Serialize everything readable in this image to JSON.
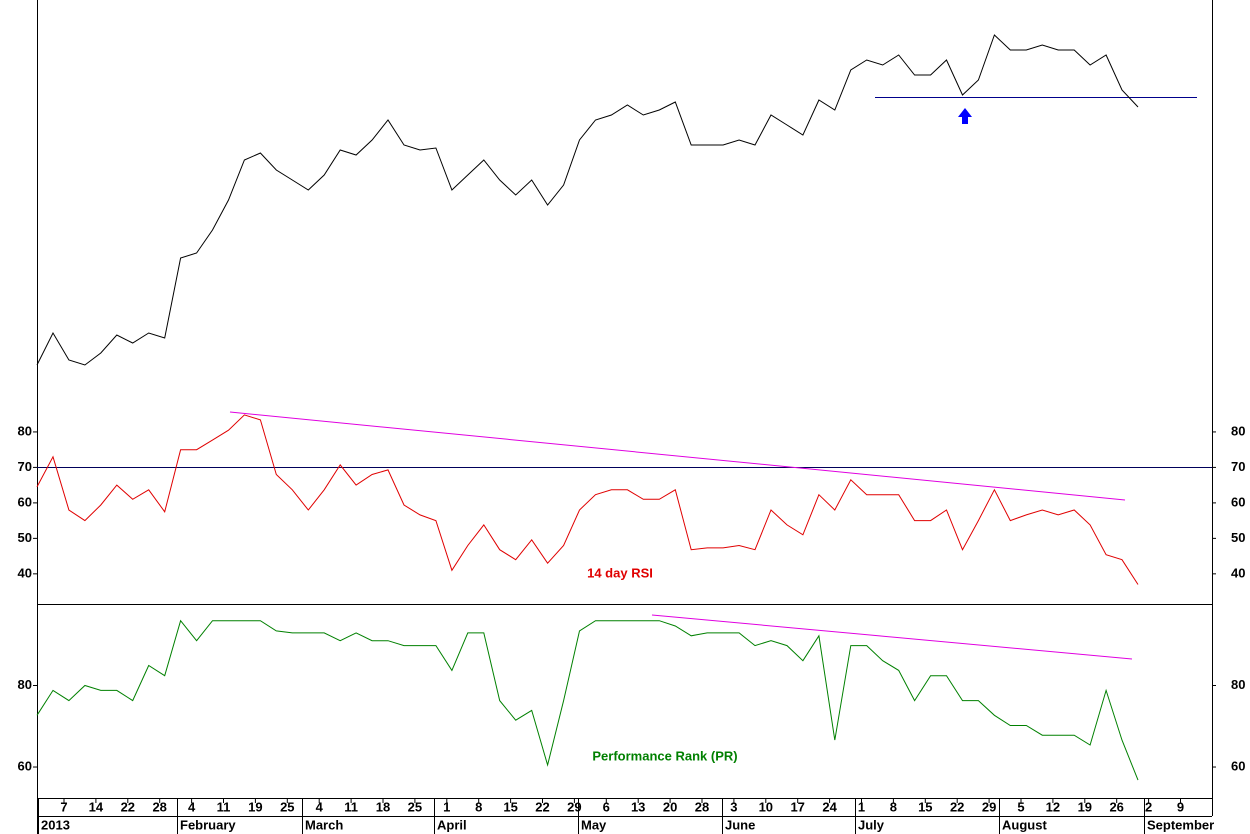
{
  "chart_data": [
    {
      "type": "line",
      "color": "#000000",
      "ylim": [
        0,
        100
      ],
      "values": [
        8.75,
        16.75,
        10,
        8.75,
        11.75,
        16.25,
        14.25,
        16.75,
        15.5,
        35.5,
        36.75,
        42.5,
        50,
        60,
        61.75,
        57.5,
        55,
        52.5,
        56.25,
        62.5,
        61.25,
        65,
        70,
        63.75,
        62.5,
        63,
        52.5,
        56.25,
        60,
        55,
        51.25,
        55,
        48.75,
        53.75,
        65,
        70,
        71.25,
        73.75,
        71.25,
        72.5,
        74.5,
        63.75,
        63.75,
        63.75,
        65,
        63.75,
        71.25,
        68.75,
        66.25,
        75,
        72.5,
        82.5,
        85,
        83.75,
        86.25,
        81.25,
        81.25,
        85,
        76.25,
        80,
        91.25,
        87.5,
        87.5,
        88.75,
        87.5,
        87.5,
        83.75,
        86.25,
        77.5,
        73.25
      ]
    },
    {
      "type": "line",
      "color": "#e00000",
      "annotation": "14 day RSI",
      "ylim": [
        31.5,
        89
      ],
      "yticks": [
        40,
        50,
        60,
        70,
        80
      ],
      "values": [
        64.5,
        73,
        58,
        55,
        59.4,
        65,
        61,
        63.7,
        57.5,
        75,
        75,
        77.7,
        80.5,
        84.8,
        83.4,
        68,
        63.7,
        58,
        63.7,
        70.7,
        65,
        68,
        69.3,
        59.4,
        56.6,
        55,
        41,
        48,
        53.8,
        46.8,
        44,
        49.6,
        43,
        48,
        58,
        62.3,
        63.7,
        63.7,
        61,
        61,
        63.7,
        46.8,
        47.3,
        47.3,
        48,
        46.8,
        58,
        53.8,
        51,
        62.3,
        58,
        66.5,
        62.3,
        62.3,
        62.3,
        55,
        55,
        58,
        46.8,
        55,
        63.7,
        55,
        56.6,
        58,
        56.6,
        58,
        53.8,
        45.4,
        44,
        37
      ]
    },
    {
      "type": "line",
      "color": "#008000",
      "annotation": "Performance Rank (PR)",
      "ylim": [
        52.4,
        100
      ],
      "yticks": [
        60,
        80
      ],
      "values": [
        72.7,
        78.8,
        76.3,
        80,
        78.8,
        78.8,
        76.3,
        84.9,
        82.4,
        95.9,
        91,
        95.9,
        95.9,
        95.9,
        95.9,
        93.4,
        92.9,
        92.9,
        92.9,
        91,
        92.9,
        91,
        91,
        89.8,
        89.8,
        89.8,
        83.7,
        92.9,
        92.9,
        76.3,
        71.5,
        73.9,
        60.5,
        76.3,
        93.4,
        95.9,
        95.9,
        95.9,
        95.9,
        95.9,
        94.6,
        92.2,
        92.9,
        92.9,
        92.9,
        89.8,
        91,
        89.8,
        86.1,
        92.2,
        66.6,
        89.8,
        89.8,
        86.1,
        83.7,
        76.3,
        82.4,
        82.4,
        76.3,
        76.3,
        72.7,
        70.2,
        70.2,
        67.8,
        67.8,
        67.8,
        65.4,
        78.8,
        66.6,
        56.8
      ]
    }
  ],
  "x_axis": {
    "ticks": [
      "7",
      "14",
      "22",
      "28",
      "4",
      "11",
      "19",
      "25",
      "4",
      "11",
      "18",
      "25",
      "1",
      "8",
      "15",
      "22",
      "29",
      "6",
      "13",
      "20",
      "28",
      "3",
      "10",
      "17",
      "24",
      "1",
      "8",
      "15",
      "22",
      "29",
      "5",
      "12",
      "19",
      "26",
      "2",
      "9"
    ],
    "months": [
      "2013",
      "February",
      "March",
      "April",
      "May",
      "June",
      "July",
      "August",
      "September"
    ]
  }
}
